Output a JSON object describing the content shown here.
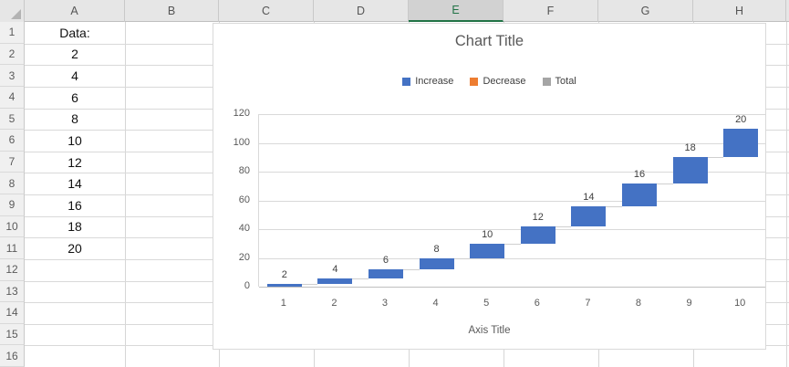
{
  "spreadsheet": {
    "column_headers": [
      "A",
      "B",
      "C",
      "D",
      "E",
      "F",
      "G",
      "H"
    ],
    "selected_column": "E",
    "row_headers": [
      "1",
      "2",
      "3",
      "4",
      "5",
      "6",
      "7",
      "8",
      "9",
      "10",
      "11",
      "12",
      "13",
      "14",
      "15",
      "16"
    ],
    "column_a_values": [
      "Data:",
      "2",
      "4",
      "6",
      "8",
      "10",
      "12",
      "14",
      "16",
      "18",
      "20"
    ]
  },
  "chart_data": {
    "type": "bar",
    "subtype": "waterfall",
    "title": "Chart Title",
    "xlabel": "Axis Title",
    "ylabel": "",
    "categories": [
      "1",
      "2",
      "3",
      "4",
      "5",
      "6",
      "7",
      "8",
      "9",
      "10"
    ],
    "values": [
      2,
      4,
      6,
      8,
      10,
      12,
      14,
      16,
      18,
      20
    ],
    "cumulative_start": [
      0,
      2,
      6,
      12,
      20,
      30,
      42,
      56,
      72,
      90
    ],
    "cumulative_end": [
      2,
      6,
      12,
      20,
      30,
      42,
      56,
      72,
      90,
      110
    ],
    "data_labels": [
      "2",
      "4",
      "6",
      "8",
      "10",
      "12",
      "14",
      "16",
      "18",
      "20"
    ],
    "ylim": [
      0,
      120
    ],
    "yticks": [
      "0",
      "20",
      "40",
      "60",
      "80",
      "100",
      "120"
    ],
    "grid": true,
    "legend_position": "top",
    "legend": [
      {
        "label": "Increase",
        "color": "#4472C4"
      },
      {
        "label": "Decrease",
        "color": "#ED7D31"
      },
      {
        "label": "Total",
        "color": "#A5A5A5"
      }
    ]
  },
  "colors": {
    "bar_increase": "#4472C4",
    "bar_decrease": "#ED7D31",
    "bar_total": "#A5A5A5",
    "selection_accent": "#217346",
    "chart_text": "#595959",
    "data_label_text": "#404040"
  }
}
